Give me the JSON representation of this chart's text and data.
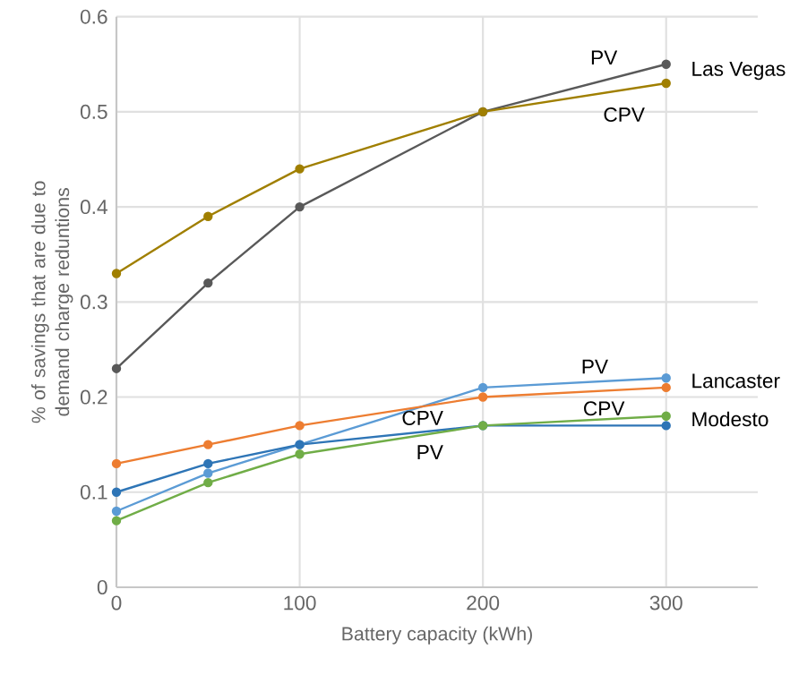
{
  "chart_data": {
    "type": "line",
    "xlabel": "Battery capacity (kWh)",
    "ylabel": "% of savings that are due to demand charge reduntions",
    "x": [
      0,
      50,
      100,
      200,
      300
    ],
    "series": [
      {
        "color": "#595959",
        "values": [
          0.23,
          0.32,
          0.4,
          0.5,
          0.55
        ]
      },
      {
        "color": "#a07f00",
        "values": [
          0.33,
          0.39,
          0.44,
          0.5,
          0.53
        ]
      },
      {
        "color": "#5b9bd5",
        "values": [
          0.08,
          0.12,
          0.15,
          0.21,
          0.22
        ]
      },
      {
        "color": "#ed7d31",
        "values": [
          0.13,
          0.15,
          0.17,
          0.2,
          0.21
        ]
      },
      {
        "color": "#2e75b6",
        "values": [
          0.1,
          0.13,
          0.15,
          0.17,
          0.17
        ]
      },
      {
        "color": "#70ad47",
        "values": [
          0.07,
          0.11,
          0.14,
          0.17,
          0.18
        ]
      }
    ],
    "xlim": [
      0,
      350
    ],
    "xticks": [
      0,
      100,
      200,
      300
    ],
    "ylim": [
      0,
      0.6
    ],
    "yticks": [
      0,
      0.1,
      0.2,
      0.3,
      0.4,
      0.5,
      0.6
    ],
    "grid": true,
    "marker": "circle",
    "line_style": "solid",
    "annotations": [
      "PV",
      "Las Vegas",
      "CPV",
      "PV",
      "Lancaster",
      "CPV",
      "CPV",
      "Modesto",
      "PV"
    ]
  }
}
